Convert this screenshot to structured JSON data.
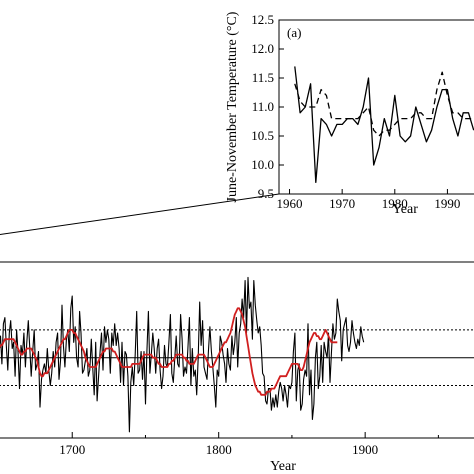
{
  "chart_data": [
    {
      "id": "inset",
      "type": "line",
      "panel_label": "(a)",
      "xlabel": "Year",
      "ylabel": "June-November Temperature (°C)",
      "xlim": [
        1958,
        1996
      ],
      "ylim": [
        9.5,
        12.5
      ],
      "xticks": [
        "1960",
        "1970",
        "1980",
        "1990"
      ],
      "yticks": [
        "9.5",
        "10.0",
        "10.5",
        "11.0",
        "11.5",
        "12.0",
        "12.5"
      ],
      "x": [
        1961,
        1962,
        1963,
        1964,
        1965,
        1966,
        1967,
        1968,
        1969,
        1970,
        1971,
        1972,
        1973,
        1974,
        1975,
        1976,
        1977,
        1978,
        1979,
        1980,
        1981,
        1982,
        1983,
        1984,
        1985,
        1986,
        1987,
        1988,
        1989,
        1990,
        1991,
        1992,
        1993,
        1994,
        1995
      ],
      "series": [
        {
          "style": "solid",
          "values": [
            11.7,
            10.9,
            11.0,
            11.4,
            9.7,
            10.8,
            10.7,
            10.5,
            10.7,
            10.7,
            10.8,
            10.8,
            10.7,
            11.0,
            11.5,
            10.0,
            10.3,
            10.8,
            10.5,
            11.2,
            10.5,
            10.4,
            10.5,
            11.0,
            10.7,
            10.4,
            10.6,
            11.0,
            11.3,
            11.3,
            10.8,
            10.5,
            10.9,
            10.9,
            10.6
          ]
        },
        {
          "style": "dashed",
          "values": [
            11.4,
            11.1,
            11.0,
            11.0,
            11.0,
            11.3,
            11.2,
            10.8,
            10.8,
            10.8,
            10.8,
            10.8,
            10.8,
            10.9,
            11.0,
            10.6,
            10.5,
            10.6,
            10.6,
            10.7,
            10.8,
            10.8,
            10.8,
            10.9,
            10.9,
            10.8,
            10.8,
            11.3,
            11.6,
            11.2,
            10.9,
            10.9,
            10.8,
            10.8,
            10.8
          ]
        }
      ]
    },
    {
      "id": "main",
      "type": "line",
      "xlabel": "Year",
      "xlim": [
        1650,
        1975
      ],
      "ylim": [
        -2.6,
        3.1
      ],
      "xticks": [
        "1700",
        "1800",
        "1900"
      ],
      "reference_lines": {
        "solid": 0,
        "dotted": [
          -0.9,
          0.9
        ]
      },
      "start_year": 1650,
      "series": [
        {
          "name": "raw",
          "values": [
            0.3,
            0.7,
            -0.2,
            1.1,
            1.3,
            0.4,
            -0.4,
            0.8,
            1.2,
            0.3,
            0.5,
            -0.6,
            0.9,
            0.2,
            -1.0,
            0.4,
            0.1,
            0.8,
            -0.3,
            0.5,
            1.2,
            0.3,
            -0.6,
            0.2,
            0.9,
            -0.4,
            -0.2,
            0.2,
            -1.6,
            -0.7,
            -0.4,
            -0.2,
            -0.5,
            0.3,
            -0.4,
            -0.9,
            -0.5,
            0.2,
            -0.3,
            0.5,
            0.8,
            -0.7,
            -0.1,
            1.7,
            0.4,
            -0.3,
            0.6,
            0.9,
            0.2,
            1.6,
            2.0,
            0.5,
            1.0,
            0.0,
            -0.3,
            1.5,
            0.8,
            -0.5,
            -0.4,
            -0.1,
            0.3,
            -0.6,
            -0.4,
            0.6,
            -0.3,
            -1.2,
            0.5,
            -1.4,
            -0.6,
            0.2,
            0.8,
            -0.4,
            1.0,
            0.5,
            0.9,
            0.6,
            -0.5,
            0.8,
            0.4,
            1.1,
            0.4,
            0.8,
            0.3,
            -0.8,
            0.5,
            -0.9,
            0.2,
            0.1,
            -0.6,
            -2.4,
            -0.8,
            -0.3,
            -0.9,
            0.1,
            1.5,
            -0.5,
            -0.4,
            0.2,
            -0.7,
            0.2,
            -1.5,
            0.2,
            1.5,
            -0.5,
            0.1,
            0.8,
            0.3,
            -0.5,
            0.3,
            0.6,
            -0.4,
            -1.0,
            -0.6,
            0.4,
            -0.2,
            -0.3,
            0.5,
            1.4,
            -0.5,
            -0.8,
            0.0,
            0.7,
            -0.2,
            -0.3,
            1.4,
            0.6,
            -0.6,
            -0.3,
            -0.5,
            0.3,
            1.3,
            -0.9,
            0.3,
            -0.6,
            -0.4,
            -1.2,
            0.0,
            1.8,
            0.4,
            1.2,
            -0.3,
            -0.5,
            -0.7,
            0.2,
            1.0,
            0.2,
            -0.3,
            -0.9,
            -1.6,
            -0.4,
            -0.6,
            0.7,
            0.5,
            0.1,
            -0.2,
            -0.8,
            0.3,
            -0.2,
            -0.4,
            0.7,
            0.1,
            0.5,
            1.3,
            -0.3,
            0.8,
            1.1,
            1.9,
            1.3,
            2.5,
            0.8,
            2.6,
            1.6,
            1.8,
            0.6,
            2.5,
            1.7,
            1.2,
            0.8,
            1.0,
            0.4,
            -0.5,
            -0.6,
            -1.4,
            -1.5,
            -1.0,
            -1.0,
            -1.7,
            -1.3,
            -1.6,
            -1.2,
            -1.6,
            -1.1,
            -0.8,
            -1.0,
            -1.4,
            -0.9,
            -1.2,
            -1.6,
            -0.9,
            -1.0,
            -0.8,
            0.2,
            0.8,
            -1.4,
            -0.4,
            -0.2,
            -1.7,
            -1.5,
            -0.7,
            -0.4,
            -0.6,
            1.1,
            -1.2,
            -0.4,
            -2.0,
            -1.5,
            0.0,
            0.5,
            -1.0,
            -0.6,
            0.4,
            -0.8,
            0.5,
            0.2,
            0.0,
            0.8,
            -0.8,
            0.2,
            1.1,
            0.6,
            0.8,
            1.9,
            1.5,
            1.2,
            -0.1,
            0.9,
            1.1,
            1.3,
            0.4,
            0.2,
            0.5,
            1.2,
            0.8,
            0.5,
            0.3,
            0.6,
            0.4,
            1.0,
            0.7,
            0.5
          ]
        },
        {
          "name": "smoothed",
          "values": [
            0.3,
            0.4,
            0.4,
            0.5,
            0.6,
            0.6,
            0.6,
            0.6,
            0.6,
            0.6,
            0.6,
            0.5,
            0.4,
            0.3,
            0.2,
            0.1,
            0.1,
            0.2,
            0.2,
            0.3,
            0.3,
            0.3,
            0.3,
            0.2,
            0.1,
            0.0,
            -0.1,
            -0.3,
            -0.5,
            -0.6,
            -0.6,
            -0.5,
            -0.5,
            -0.5,
            -0.4,
            -0.3,
            -0.2,
            -0.1,
            0.0,
            0.1,
            0.2,
            0.3,
            0.4,
            0.5,
            0.6,
            0.6,
            0.7,
            0.8,
            0.9,
            0.9,
            0.9,
            0.8,
            0.8,
            0.7,
            0.6,
            0.5,
            0.4,
            0.3,
            0.2,
            0.0,
            -0.1,
            -0.2,
            -0.3,
            -0.3,
            -0.3,
            -0.3,
            -0.3,
            -0.2,
            -0.1,
            0.0,
            0.1,
            0.2,
            0.2,
            0.3,
            0.3,
            0.3,
            0.3,
            0.3,
            0.2,
            0.2,
            0.1,
            0.0,
            -0.1,
            -0.2,
            -0.3,
            -0.3,
            -0.3,
            -0.3,
            -0.3,
            -0.3,
            -0.3,
            -0.2,
            -0.2,
            -0.2,
            -0.2,
            -0.2,
            -0.2,
            -0.1,
            0.0,
            0.1,
            0.1,
            0.1,
            0.1,
            0.1,
            0.1,
            0.0,
            0.0,
            0.0,
            -0.1,
            -0.2,
            -0.2,
            -0.3,
            -0.3,
            -0.3,
            -0.3,
            -0.3,
            -0.2,
            -0.2,
            -0.1,
            -0.1,
            0.0,
            0.1,
            0.1,
            0.1,
            0.1,
            0.1,
            0.0,
            0.0,
            -0.1,
            -0.1,
            -0.2,
            -0.2,
            -0.2,
            -0.2,
            -0.1,
            0.0,
            0.1,
            0.1,
            0.1,
            0.1,
            0.1,
            0.0,
            -0.1,
            -0.2,
            -0.3,
            -0.3,
            -0.3,
            -0.2,
            -0.1,
            0.0,
            0.1,
            0.2,
            0.3,
            0.4,
            0.5,
            0.5,
            0.6,
            0.7,
            0.8,
            1.0,
            1.2,
            1.4,
            1.5,
            1.6,
            1.6,
            1.5,
            1.4,
            1.2,
            1.0,
            0.7,
            0.4,
            0.1,
            -0.2,
            -0.5,
            -0.7,
            -0.9,
            -1.0,
            -1.1,
            -1.1,
            -1.2,
            -1.2,
            -1.2,
            -1.2,
            -1.1,
            -1.1,
            -1.1,
            -1.0,
            -1.0,
            -1.0,
            -0.9,
            -0.8,
            -0.7,
            -0.6,
            -0.6,
            -0.6,
            -0.6,
            -0.6,
            -0.5,
            -0.4,
            -0.3,
            -0.2,
            -0.2,
            -0.2,
            -0.2,
            -0.2,
            -0.3,
            -0.4,
            -0.4,
            -0.3,
            -0.1,
            0.1,
            0.3,
            0.5,
            0.6,
            0.7,
            0.8,
            0.8,
            0.7,
            0.7,
            0.6,
            0.6,
            0.7,
            0.8,
            0.9,
            0.8,
            0.7,
            0.6,
            0.5,
            0.5,
            0.5,
            0.5,
            0.5
          ]
        }
      ]
    }
  ],
  "colors": {
    "raw": "#000000",
    "smoothed": "#d11f1f",
    "axis": "#000000"
  }
}
